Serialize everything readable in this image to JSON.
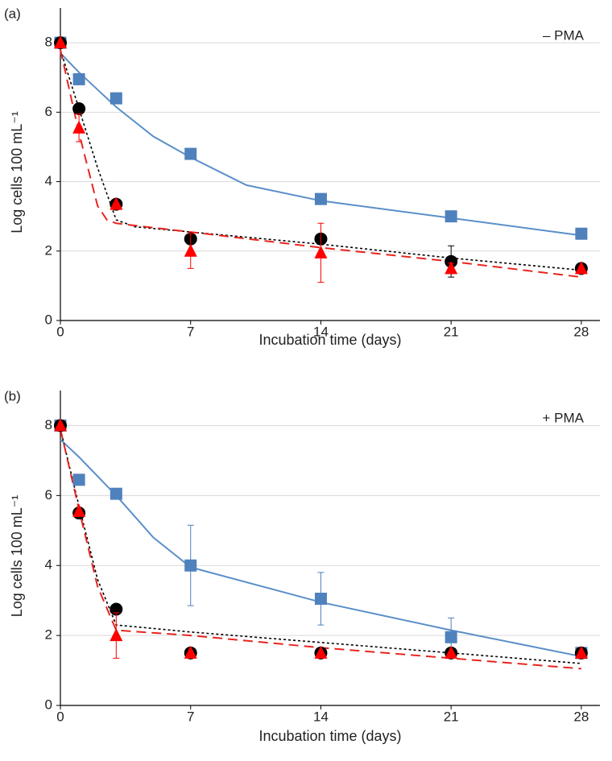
{
  "chart_data": [
    {
      "type": "scatter",
      "panel_label": "(a)",
      "annotation": "– PMA",
      "x_label": "Incubation time (days)",
      "y_label": "Log cells 100 mL⁻¹",
      "x": [
        0,
        1,
        3,
        7,
        14,
        21,
        28
      ],
      "xlim": [
        0,
        29
      ],
      "xticks": [
        0,
        7,
        14,
        21,
        28
      ],
      "ylim": [
        0,
        9
      ],
      "yticks": [
        0,
        2,
        4,
        6,
        8
      ],
      "grid": true,
      "series": [
        {
          "marker": "square",
          "color": "#4f81bd",
          "line_color": "#5b8fc9",
          "line_style": "solid",
          "values": [
            8.0,
            6.95,
            6.4,
            4.8,
            3.5,
            3.0,
            2.5
          ],
          "errors": [
            0.1,
            0.15,
            0.15,
            0.12,
            0.1,
            0.1,
            0.15
          ],
          "fit_x": [
            0,
            1,
            3,
            5,
            7,
            10,
            14,
            21,
            28
          ],
          "fit_values": [
            7.7,
            7.15,
            6.15,
            5.3,
            4.7,
            3.9,
            3.45,
            2.95,
            2.45
          ]
        },
        {
          "marker": "circle",
          "color": "#000000",
          "line_color": "#000000",
          "line_style": "dotted",
          "values": [
            8.0,
            6.1,
            3.35,
            2.35,
            2.35,
            1.7,
            1.5
          ],
          "errors": [
            0,
            0,
            0,
            0.1,
            0,
            0.45,
            0
          ],
          "fit_x": [
            0,
            1,
            2,
            3,
            4,
            7,
            14,
            21,
            28
          ],
          "fit_values": [
            7.8,
            6.1,
            4.4,
            2.9,
            2.7,
            2.55,
            2.2,
            1.8,
            1.45
          ]
        },
        {
          "marker": "triangle",
          "color": "#ff0000",
          "line_color": "#e8251f",
          "line_style": "dashed",
          "values": [
            8.0,
            5.55,
            3.35,
            2.0,
            1.95,
            1.5,
            1.5
          ],
          "errors": [
            0,
            0.4,
            0,
            0.5,
            0.85,
            0.15,
            0
          ],
          "fit_x": [
            0,
            1,
            2,
            2.5,
            3,
            7,
            14,
            21,
            28
          ],
          "fit_values": [
            7.8,
            5.4,
            3.3,
            2.9,
            2.8,
            2.55,
            2.1,
            1.7,
            1.25
          ]
        }
      ]
    },
    {
      "type": "scatter",
      "panel_label": "(b)",
      "annotation": "+ PMA",
      "x_label": "Incubation time (days)",
      "y_label": "Log cells 100 mL⁻¹",
      "x": [
        0,
        1,
        3,
        7,
        14,
        21,
        28
      ],
      "xlim": [
        0,
        29
      ],
      "xticks": [
        0,
        7,
        14,
        21,
        28
      ],
      "ylim": [
        0,
        9
      ],
      "yticks": [
        0,
        2,
        4,
        6,
        8
      ],
      "grid": true,
      "series": [
        {
          "marker": "square",
          "color": "#4f81bd",
          "line_color": "#5b8fc9",
          "line_style": "solid",
          "values": [
            8.0,
            6.45,
            6.05,
            4.0,
            3.05,
            1.95,
            1.5
          ],
          "errors": [
            0,
            0,
            0,
            1.15,
            0.75,
            0.55,
            0
          ],
          "fit_x": [
            0,
            1,
            3,
            5,
            7,
            14,
            21,
            28
          ],
          "fit_values": [
            7.6,
            7.1,
            6.0,
            4.8,
            3.95,
            2.95,
            2.15,
            1.4
          ]
        },
        {
          "marker": "circle",
          "color": "#000000",
          "line_color": "#000000",
          "line_style": "dotted",
          "values": [
            8.0,
            5.5,
            2.75,
            1.5,
            1.5,
            1.5,
            1.5
          ],
          "errors": [
            0,
            0,
            0,
            0,
            0,
            0,
            0
          ],
          "fit_x": [
            0,
            1,
            2,
            3,
            7,
            14,
            21,
            28
          ],
          "fit_values": [
            7.9,
            5.7,
            3.6,
            2.3,
            2.1,
            1.8,
            1.5,
            1.2
          ]
        },
        {
          "marker": "triangle",
          "color": "#ff0000",
          "line_color": "#e8251f",
          "line_style": "dashed",
          "values": [
            8.0,
            5.55,
            2.0,
            1.5,
            1.5,
            1.5,
            1.5
          ],
          "errors": [
            0,
            0,
            0.65,
            0,
            0,
            0,
            0
          ],
          "fit_x": [
            0,
            1,
            2,
            3,
            7,
            14,
            21,
            28
          ],
          "fit_values": [
            7.9,
            5.6,
            3.4,
            2.15,
            2.0,
            1.65,
            1.35,
            1.05
          ]
        }
      ]
    }
  ]
}
